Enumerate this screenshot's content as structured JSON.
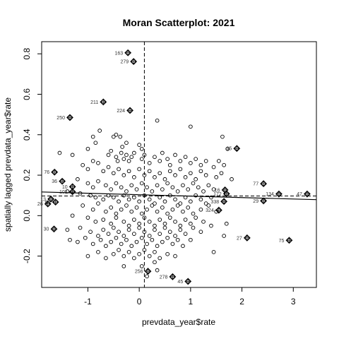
{
  "chart_data": {
    "type": "scatter",
    "title": "Moran Scatterplot: 2021",
    "xlabel": "prevdata_year$rate",
    "ylabel": "spatially lagged prevdata_year$rate",
    "xlim": [
      -1.9,
      3.45
    ],
    "ylim": [
      -0.355,
      0.86
    ],
    "x_ticks": [
      -1,
      0,
      1,
      2,
      3
    ],
    "y_ticks": [
      -0.2,
      0.0,
      0.2,
      0.4,
      0.6,
      0.8
    ],
    "x_tick_labels": [
      "-1",
      "0",
      "1",
      "2",
      "3"
    ],
    "y_tick_labels": [
      "-0.2",
      "0.0",
      "0.2",
      "0.4",
      "0.6",
      "0.8"
    ],
    "mean_x": 0.1,
    "mean_y": 0.097,
    "regression_line": {
      "x1": -1.9,
      "y1": 0.117,
      "x2": 3.45,
      "y2": 0.079
    },
    "grid": false,
    "legend": "none",
    "influential_points": [
      {
        "label": "163",
        "x": -0.22,
        "y": 0.805
      },
      {
        "label": "279",
        "x": -0.11,
        "y": 0.762
      },
      {
        "label": "211",
        "x": -0.7,
        "y": 0.562
      },
      {
        "label": "224",
        "x": -0.18,
        "y": 0.52
      },
      {
        "label": "250",
        "x": -1.35,
        "y": 0.485
      },
      {
        "label": "95",
        "x": 1.9,
        "y": 0.332
      },
      {
        "label": "76",
        "x": -1.65,
        "y": 0.215
      },
      {
        "label": "36",
        "x": -1.5,
        "y": 0.17
      },
      {
        "label": "10",
        "x": -1.3,
        "y": 0.143
      },
      {
        "label": "102",
        "x": -1.3,
        "y": 0.118
      },
      {
        "label": "13",
        "x": -1.72,
        "y": 0.082
      },
      {
        "label": "67",
        "x": -1.63,
        "y": 0.067
      },
      {
        "label": "26",
        "x": -1.78,
        "y": 0.058
      },
      {
        "label": "30",
        "x": -1.66,
        "y": -0.066
      },
      {
        "label": "16",
        "x": 1.67,
        "y": 0.127
      },
      {
        "label": "172",
        "x": 1.7,
        "y": 0.108
      },
      {
        "label": "338",
        "x": 1.65,
        "y": 0.07
      },
      {
        "label": "324",
        "x": 1.55,
        "y": 0.027
      },
      {
        "label": "77",
        "x": 2.42,
        "y": 0.158
      },
      {
        "label": "134",
        "x": 2.72,
        "y": 0.107
      },
      {
        "label": "47",
        "x": 3.27,
        "y": 0.107
      },
      {
        "label": "29",
        "x": 2.42,
        "y": 0.073
      },
      {
        "label": "27",
        "x": 2.1,
        "y": -0.11
      },
      {
        "label": "75",
        "x": 2.92,
        "y": -0.122
      },
      {
        "label": "256",
        "x": 0.17,
        "y": -0.275
      },
      {
        "label": "278",
        "x": 0.65,
        "y": -0.302
      },
      {
        "label": "45",
        "x": 0.95,
        "y": -0.325
      }
    ],
    "points": [
      [
        -0.77,
        0.42
      ],
      [
        -0.5,
        0.39
      ],
      [
        -0.45,
        0.4
      ],
      [
        -0.37,
        0.39
      ],
      [
        -0.33,
        0.34
      ],
      [
        -0.25,
        0.36
      ],
      [
        0.35,
        0.47
      ],
      [
        1.0,
        0.44
      ],
      [
        1.62,
        0.39
      ],
      [
        1.72,
        0.33
      ],
      [
        0.0,
        0.35
      ],
      [
        0.05,
        0.33
      ],
      [
        -0.6,
        0.3
      ],
      [
        -0.55,
        0.32
      ],
      [
        -0.45,
        0.29
      ],
      [
        -0.42,
        0.27
      ],
      [
        -0.35,
        0.31
      ],
      [
        -0.3,
        0.28
      ],
      [
        -0.25,
        0.3
      ],
      [
        -0.2,
        0.27
      ],
      [
        -0.15,
        0.29
      ],
      [
        -0.1,
        0.31
      ],
      [
        0.05,
        0.28
      ],
      [
        0.1,
        0.3
      ],
      [
        0.2,
        0.26
      ],
      [
        0.3,
        0.29
      ],
      [
        0.4,
        0.27
      ],
      [
        0.45,
        0.31
      ],
      [
        0.55,
        0.28
      ],
      [
        0.6,
        0.25
      ],
      [
        0.7,
        0.3
      ],
      [
        0.8,
        0.27
      ],
      [
        0.9,
        0.29
      ],
      [
        1.0,
        0.26
      ],
      [
        1.1,
        0.28
      ],
      [
        1.2,
        0.25
      ],
      [
        1.3,
        0.27
      ],
      [
        1.45,
        0.24
      ],
      [
        1.55,
        0.27
      ],
      [
        1.65,
        0.25
      ],
      [
        -1.55,
        0.31
      ],
      [
        -1.3,
        0.3
      ],
      [
        -1.1,
        0.25
      ],
      [
        -1.0,
        0.23
      ],
      [
        -0.9,
        0.27
      ],
      [
        -0.8,
        0.26
      ],
      [
        -0.7,
        0.22
      ],
      [
        -0.6,
        0.24
      ],
      [
        -0.5,
        0.21
      ],
      [
        -0.4,
        0.23
      ],
      [
        -0.3,
        0.2
      ],
      [
        -0.2,
        0.22
      ],
      [
        -0.1,
        0.19
      ],
      [
        0.0,
        0.23
      ],
      [
        0.1,
        0.2
      ],
      [
        0.2,
        0.22
      ],
      [
        0.3,
        0.19
      ],
      [
        0.4,
        0.21
      ],
      [
        0.5,
        0.18
      ],
      [
        0.6,
        0.22
      ],
      [
        0.7,
        0.2
      ],
      [
        0.8,
        0.23
      ],
      [
        0.9,
        0.19
      ],
      [
        1.0,
        0.21
      ],
      [
        1.1,
        0.18
      ],
      [
        1.2,
        0.22
      ],
      [
        1.3,
        0.2
      ],
      [
        1.5,
        0.19
      ],
      [
        1.6,
        0.21
      ],
      [
        1.8,
        0.18
      ],
      [
        -1.2,
        0.18
      ],
      [
        -1.0,
        0.16
      ],
      [
        -0.9,
        0.14
      ],
      [
        -0.8,
        0.17
      ],
      [
        -0.65,
        0.15
      ],
      [
        -0.55,
        0.13
      ],
      [
        -0.45,
        0.16
      ],
      [
        -0.35,
        0.14
      ],
      [
        -0.25,
        0.12
      ],
      [
        -0.15,
        0.15
      ],
      [
        -0.05,
        0.13
      ],
      [
        0.05,
        0.16
      ],
      [
        0.15,
        0.14
      ],
      [
        0.25,
        0.12
      ],
      [
        0.35,
        0.15
      ],
      [
        0.45,
        0.13
      ],
      [
        0.55,
        0.16
      ],
      [
        0.65,
        0.14
      ],
      [
        0.75,
        0.12
      ],
      [
        0.85,
        0.15
      ],
      [
        0.95,
        0.13
      ],
      [
        1.05,
        0.16
      ],
      [
        1.15,
        0.14
      ],
      [
        1.25,
        0.12
      ],
      [
        1.35,
        0.15
      ],
      [
        1.45,
        0.13
      ],
      [
        -1.4,
        0.12
      ],
      [
        -1.15,
        0.11
      ],
      [
        -0.95,
        0.1
      ],
      [
        -0.85,
        0.09
      ],
      [
        -0.7,
        0.08
      ],
      [
        -0.6,
        0.1
      ],
      [
        -0.5,
        0.09
      ],
      [
        -0.4,
        0.07
      ],
      [
        -0.3,
        0.1
      ],
      [
        -0.2,
        0.08
      ],
      [
        -0.1,
        0.09
      ],
      [
        0.0,
        0.07
      ],
      [
        0.1,
        0.1
      ],
      [
        0.2,
        0.08
      ],
      [
        0.3,
        0.06
      ],
      [
        0.4,
        0.09
      ],
      [
        0.5,
        0.07
      ],
      [
        0.6,
        0.1
      ],
      [
        0.7,
        0.08
      ],
      [
        0.8,
        0.06
      ],
      [
        0.9,
        0.09
      ],
      [
        1.0,
        0.07
      ],
      [
        1.1,
        0.1
      ],
      [
        1.2,
        0.08
      ],
      [
        1.3,
        0.06
      ],
      [
        1.4,
        0.09
      ],
      [
        -1.1,
        0.05
      ],
      [
        -0.9,
        0.03
      ],
      [
        -0.8,
        0.06
      ],
      [
        -0.65,
        0.02
      ],
      [
        -0.55,
        0.04
      ],
      [
        -0.45,
        0.01
      ],
      [
        -0.35,
        0.03
      ],
      [
        -0.25,
        0.05
      ],
      [
        -0.15,
        0.02
      ],
      [
        -0.05,
        0.04
      ],
      [
        0.05,
        0.01
      ],
      [
        0.15,
        0.03
      ],
      [
        0.25,
        0.05
      ],
      [
        0.35,
        0.02
      ],
      [
        0.45,
        0.04
      ],
      [
        0.55,
        0.01
      ],
      [
        0.65,
        0.03
      ],
      [
        0.75,
        0.05
      ],
      [
        0.85,
        0.02
      ],
      [
        0.95,
        0.04
      ],
      [
        1.05,
        0.01
      ],
      [
        1.2,
        0.03
      ],
      [
        1.35,
        0.05
      ],
      [
        1.5,
        0.02
      ],
      [
        -1.3,
        0.0
      ],
      [
        -1.0,
        -0.01
      ],
      [
        -0.85,
        -0.03
      ],
      [
        -0.7,
        -0.02
      ],
      [
        -0.55,
        -0.04
      ],
      [
        -0.45,
        -0.01
      ],
      [
        -0.3,
        -0.03
      ],
      [
        -0.2,
        -0.05
      ],
      [
        -0.1,
        -0.02
      ],
      [
        0.0,
        -0.04
      ],
      [
        0.1,
        -0.01
      ],
      [
        0.2,
        -0.03
      ],
      [
        0.3,
        -0.05
      ],
      [
        0.4,
        -0.02
      ],
      [
        0.5,
        -0.04
      ],
      [
        0.6,
        -0.01
      ],
      [
        0.7,
        -0.03
      ],
      [
        0.8,
        -0.05
      ],
      [
        0.9,
        -0.02
      ],
      [
        1.0,
        -0.04
      ],
      [
        1.1,
        -0.01
      ],
      [
        1.25,
        -0.03
      ],
      [
        1.4,
        -0.05
      ],
      [
        1.7,
        -0.04
      ],
      [
        1.65,
        -0.1
      ],
      [
        -1.4,
        -0.07
      ],
      [
        -1.15,
        -0.06
      ],
      [
        -0.95,
        -0.08
      ],
      [
        -0.8,
        -0.1
      ],
      [
        -0.7,
        -0.07
      ],
      [
        -0.6,
        -0.09
      ],
      [
        -0.5,
        -0.06
      ],
      [
        -0.4,
        -0.08
      ],
      [
        -0.3,
        -0.1
      ],
      [
        -0.2,
        -0.07
      ],
      [
        -0.1,
        -0.09
      ],
      [
        0.0,
        -0.06
      ],
      [
        0.1,
        -0.08
      ],
      [
        0.2,
        -0.1
      ],
      [
        0.3,
        -0.07
      ],
      [
        0.4,
        -0.09
      ],
      [
        0.5,
        -0.06
      ],
      [
        0.6,
        -0.08
      ],
      [
        0.7,
        -0.1
      ],
      [
        0.8,
        -0.07
      ],
      [
        0.9,
        -0.09
      ],
      [
        1.05,
        -0.06
      ],
      [
        1.2,
        -0.08
      ],
      [
        -1.35,
        -0.12
      ],
      [
        -1.2,
        -0.13
      ],
      [
        -1.05,
        -0.11
      ],
      [
        -0.9,
        -0.14
      ],
      [
        -0.75,
        -0.12
      ],
      [
        -0.65,
        -0.15
      ],
      [
        -0.55,
        -0.13
      ],
      [
        -0.45,
        -0.11
      ],
      [
        -0.35,
        -0.14
      ],
      [
        -0.25,
        -0.12
      ],
      [
        -0.15,
        -0.15
      ],
      [
        -0.05,
        -0.13
      ],
      [
        0.05,
        -0.11
      ],
      [
        0.15,
        -0.14
      ],
      [
        0.25,
        -0.12
      ],
      [
        0.35,
        -0.15
      ],
      [
        0.45,
        -0.13
      ],
      [
        0.55,
        -0.11
      ],
      [
        0.65,
        -0.14
      ],
      [
        0.75,
        -0.12
      ],
      [
        0.85,
        -0.15
      ],
      [
        1.0,
        -0.12
      ],
      [
        1.45,
        -0.18
      ],
      [
        -1.0,
        -0.2
      ],
      [
        -0.8,
        -0.18
      ],
      [
        -0.65,
        -0.21
      ],
      [
        -0.5,
        -0.19
      ],
      [
        -0.4,
        -0.17
      ],
      [
        -0.3,
        -0.2
      ],
      [
        -0.2,
        -0.18
      ],
      [
        -0.1,
        -0.21
      ],
      [
        0.0,
        -0.19
      ],
      [
        0.1,
        -0.17
      ],
      [
        0.2,
        -0.2
      ],
      [
        0.3,
        -0.18
      ],
      [
        0.4,
        -0.21
      ],
      [
        0.55,
        -0.19
      ],
      [
        0.7,
        -0.2
      ],
      [
        -0.3,
        -0.25
      ],
      [
        0.05,
        -0.25
      ],
      [
        0.3,
        -0.23
      ],
      [
        0.35,
        -0.27
      ],
      [
        0.15,
        -0.3
      ],
      [
        -0.9,
        0.39
      ],
      [
        -1.0,
        0.33
      ],
      [
        -0.85,
        0.36
      ]
    ]
  }
}
